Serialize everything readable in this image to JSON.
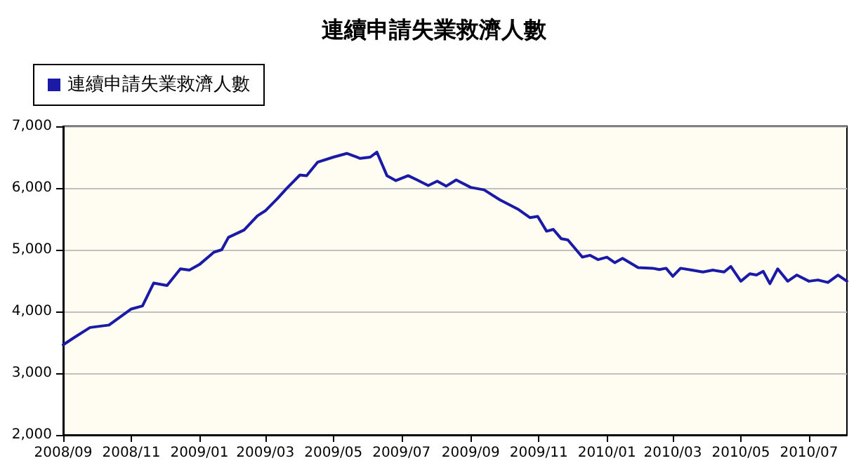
{
  "chart_data": {
    "type": "line",
    "title": "連續申請失業救濟人數",
    "x": [
      "2008-09-01",
      "2008-09-11",
      "2008-09-25",
      "2008-10-12",
      "2008-11-01",
      "2008-11-11",
      "2008-11-21",
      "2008-12-03",
      "2008-12-15",
      "2008-12-23",
      "2009-01-01",
      "2009-01-14",
      "2009-01-21",
      "2009-01-27",
      "2009-02-10",
      "2009-02-22",
      "2009-03-01",
      "2009-03-12",
      "2009-03-20",
      "2009-04-01",
      "2009-04-07",
      "2009-04-17",
      "2009-05-01",
      "2009-05-13",
      "2009-05-25",
      "2009-06-03",
      "2009-06-09",
      "2009-06-18",
      "2009-06-26",
      "2009-07-07",
      "2009-07-15",
      "2009-07-25",
      "2009-08-02",
      "2009-08-10",
      "2009-08-19",
      "2009-09-01",
      "2009-09-13",
      "2009-09-27",
      "2009-10-14",
      "2009-10-24",
      "2009-10-31",
      "2009-11-08",
      "2009-11-14",
      "2009-11-21",
      "2009-11-27",
      "2009-12-10",
      "2009-12-17",
      "2009-12-24",
      "2010-01-01",
      "2010-01-08",
      "2010-01-15",
      "2010-01-29",
      "2010-02-11",
      "2010-02-17",
      "2010-02-23",
      "2010-03-01",
      "2010-03-08",
      "2010-03-18",
      "2010-03-28",
      "2010-04-06",
      "2010-04-16",
      "2010-04-22",
      "2010-05-01",
      "2010-05-09",
      "2010-05-15",
      "2010-05-21",
      "2010-05-27",
      "2010-06-03",
      "2010-06-12",
      "2010-06-20",
      "2010-07-01",
      "2010-07-09",
      "2010-07-18",
      "2010-07-27",
      "2010-08-04"
    ],
    "series": [
      {
        "name": "連續申請失業救濟人數",
        "color": "#1a1aa6",
        "values": [
          3460,
          3580,
          3740,
          3780,
          4040,
          4090,
          4460,
          4420,
          4690,
          4670,
          4760,
          4960,
          5000,
          5200,
          5320,
          5550,
          5630,
          5830,
          5990,
          6210,
          6200,
          6420,
          6500,
          6560,
          6480,
          6500,
          6580,
          6200,
          6120,
          6200,
          6130,
          6040,
          6110,
          6030,
          6130,
          6010,
          5970,
          5810,
          5650,
          5520,
          5540,
          5300,
          5330,
          5180,
          5160,
          4880,
          4910,
          4840,
          4880,
          4790,
          4860,
          4710,
          4700,
          4680,
          4700,
          4570,
          4700,
          4670,
          4640,
          4670,
          4640,
          4730,
          4490,
          4610,
          4590,
          4650,
          4450,
          4690,
          4490,
          4590,
          4490,
          4510,
          4470,
          4590,
          4490
        ]
      }
    ],
    "xlim": [
      "2008-09-01",
      "2010-08-04"
    ],
    "xticks": [
      {
        "value": "2008-09-01",
        "label": "2008/09"
      },
      {
        "value": "2008-11-01",
        "label": "2008/11"
      },
      {
        "value": "2009-01-01",
        "label": "2009/01"
      },
      {
        "value": "2009-03-01",
        "label": "2009/03"
      },
      {
        "value": "2009-05-01",
        "label": "2009/05"
      },
      {
        "value": "2009-07-01",
        "label": "2009/07"
      },
      {
        "value": "2009-09-01",
        "label": "2009/09"
      },
      {
        "value": "2009-11-01",
        "label": "2009/11"
      },
      {
        "value": "2010-01-01",
        "label": "2010/01"
      },
      {
        "value": "2010-03-01",
        "label": "2010/03"
      },
      {
        "value": "2010-05-01",
        "label": "2010/05"
      },
      {
        "value": "2010-07-01",
        "label": "2010/07"
      }
    ],
    "ylim": [
      2000,
      7000
    ],
    "yticks": [
      {
        "value": 2000,
        "label": "2,000"
      },
      {
        "value": 3000,
        "label": "3,000"
      },
      {
        "value": 4000,
        "label": "4,000"
      },
      {
        "value": 5000,
        "label": "5,000"
      },
      {
        "value": 6000,
        "label": "6,000"
      },
      {
        "value": 7000,
        "label": "7,000"
      }
    ],
    "grid": "y",
    "legend": "top left",
    "marker": "none",
    "line_style": "solid"
  }
}
